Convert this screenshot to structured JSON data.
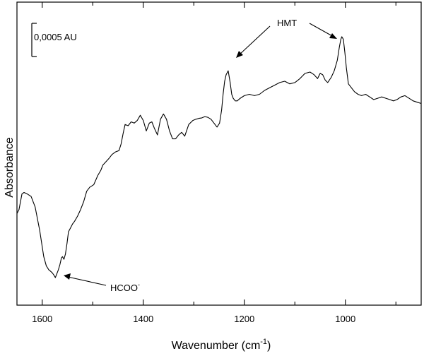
{
  "chart_data": {
    "type": "line",
    "xlabel_main": "Wavenumber (cm",
    "xlabel_sup": "-1",
    "xlabel_close": ")",
    "ylabel": "Absorbance",
    "xlim": [
      1650,
      850
    ],
    "x_reversed": true,
    "y_tick_labels_shown": false,
    "grid": false,
    "x_ticks": [
      1600,
      1400,
      1200,
      1000
    ],
    "x_tick_labels": [
      "1600",
      "1400",
      "1200",
      "1000"
    ],
    "scale_bar": {
      "label": "0,0005 AU",
      "value": 0.0005
    },
    "annotations": [
      {
        "text": "HMT",
        "arrows_to_x": [
          1232,
          1007
        ]
      },
      {
        "text_main": "HCOO",
        "text_sup": "-",
        "arrow_to_x": 1575
      }
    ],
    "series": [
      {
        "x": [
          1650,
          1646,
          1643,
          1640,
          1636,
          1630,
          1622,
          1614,
          1605,
          1597,
          1592,
          1587,
          1584,
          1580,
          1577,
          1574,
          1571,
          1568,
          1565,
          1562,
          1560,
          1557,
          1554,
          1551,
          1548,
          1544,
          1540,
          1536,
          1530,
          1524,
          1518,
          1512,
          1506,
          1498,
          1490,
          1484,
          1480,
          1475,
          1468,
          1462,
          1455,
          1448,
          1444,
          1440,
          1436,
          1430,
          1424,
          1418,
          1412,
          1406,
          1400,
          1394,
          1388,
          1383,
          1378,
          1372,
          1366,
          1360,
          1354,
          1348,
          1342,
          1336,
          1330,
          1324,
          1318,
          1310,
          1302,
          1296,
          1290,
          1284,
          1278,
          1272,
          1266,
          1260,
          1254,
          1249,
          1245,
          1242,
          1239,
          1236,
          1232,
          1228,
          1225,
          1222,
          1218,
          1214,
          1208,
          1200,
          1190,
          1180,
          1170,
          1160,
          1150,
          1140,
          1130,
          1120,
          1110,
          1100,
          1090,
          1080,
          1070,
          1062,
          1055,
          1050,
          1045,
          1040,
          1035,
          1028,
          1022,
          1016,
          1012,
          1009,
          1007,
          1004,
          1001,
          998,
          994,
          988,
          982,
          975,
          968,
          960,
          952,
          944,
          936,
          928,
          920,
          912,
          905,
          898,
          890,
          882,
          874,
          866,
          858,
          850
        ],
        "y": [
          2.45,
          2.6,
          2.9,
          3.2,
          3.25,
          3.2,
          3.1,
          2.7,
          1.8,
          0.8,
          0.45,
          0.3,
          0.25,
          0.18,
          0.1,
          0.0,
          0.15,
          0.3,
          0.5,
          0.75,
          0.8,
          0.7,
          0.9,
          1.3,
          1.75,
          1.9,
          2.05,
          2.15,
          2.35,
          2.6,
          2.9,
          3.3,
          3.45,
          3.55,
          3.9,
          4.1,
          4.3,
          4.4,
          4.55,
          4.7,
          4.8,
          4.85,
          5.1,
          5.5,
          5.85,
          5.8,
          5.95,
          5.9,
          6.0,
          6.2,
          6.0,
          5.6,
          5.9,
          5.95,
          5.7,
          5.45,
          6.05,
          6.25,
          6.05,
          5.6,
          5.3,
          5.3,
          5.45,
          5.55,
          5.4,
          5.85,
          6.0,
          6.05,
          6.08,
          6.1,
          6.15,
          6.12,
          6.05,
          5.9,
          5.75,
          5.9,
          6.4,
          7.0,
          7.5,
          7.75,
          7.9,
          7.45,
          7.0,
          6.85,
          6.75,
          6.75,
          6.85,
          6.95,
          7.0,
          6.95,
          7.0,
          7.15,
          7.25,
          7.35,
          7.45,
          7.5,
          7.4,
          7.45,
          7.6,
          7.8,
          7.85,
          7.75,
          7.6,
          7.8,
          7.75,
          7.55,
          7.45,
          7.65,
          7.9,
          8.3,
          8.8,
          9.1,
          9.2,
          9.1,
          8.6,
          8.0,
          7.4,
          7.25,
          7.1,
          7.0,
          6.95,
          7.0,
          6.9,
          6.8,
          6.85,
          6.9,
          6.85,
          6.8,
          6.75,
          6.8,
          6.9,
          6.95,
          6.85,
          6.75,
          6.7,
          6.65
        ]
      }
    ]
  }
}
